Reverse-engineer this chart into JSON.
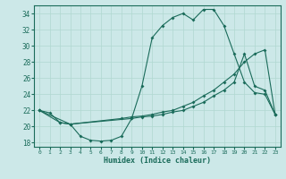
{
  "title": "",
  "xlabel": "Humidex (Indice chaleur)",
  "ylabel": "",
  "bg_color": "#cce8e8",
  "line_color": "#1a6b5a",
  "xlim": [
    -0.5,
    23.5
  ],
  "ylim": [
    17.5,
    35.0
  ],
  "xticks": [
    0,
    1,
    2,
    3,
    4,
    5,
    6,
    7,
    8,
    9,
    10,
    11,
    12,
    13,
    14,
    15,
    16,
    17,
    18,
    19,
    20,
    21,
    22,
    23
  ],
  "yticks": [
    18,
    20,
    22,
    24,
    26,
    28,
    30,
    32,
    34
  ],
  "line1_x": [
    0,
    1,
    2,
    3,
    4,
    5,
    6,
    7,
    8,
    9,
    10,
    11,
    12,
    13,
    14,
    15,
    16,
    17,
    18,
    19,
    20,
    21,
    22,
    23
  ],
  "line1_y": [
    22.0,
    21.7,
    20.5,
    20.3,
    18.8,
    18.3,
    18.2,
    18.3,
    18.8,
    21.0,
    25.0,
    31.0,
    32.5,
    33.5,
    34.0,
    33.2,
    34.5,
    34.5,
    32.5,
    29.0,
    25.5,
    24.2,
    24.0,
    21.5
  ],
  "line2_x": [
    0,
    2,
    3,
    9,
    10,
    11,
    12,
    13,
    14,
    15,
    16,
    17,
    18,
    19,
    20,
    21,
    22,
    23
  ],
  "line2_y": [
    22.0,
    20.5,
    20.3,
    21.0,
    21.2,
    21.3,
    21.5,
    21.8,
    22.0,
    22.5,
    23.0,
    23.8,
    24.5,
    25.5,
    29.0,
    25.0,
    24.5,
    21.5
  ],
  "line3_x": [
    0,
    3,
    8,
    9,
    10,
    11,
    12,
    13,
    14,
    15,
    16,
    17,
    18,
    19,
    20,
    21,
    22,
    23
  ],
  "line3_y": [
    22.0,
    20.3,
    21.0,
    21.2,
    21.3,
    21.5,
    21.8,
    22.0,
    22.5,
    23.0,
    23.8,
    24.5,
    25.5,
    26.5,
    28.0,
    29.0,
    29.5,
    21.5
  ]
}
